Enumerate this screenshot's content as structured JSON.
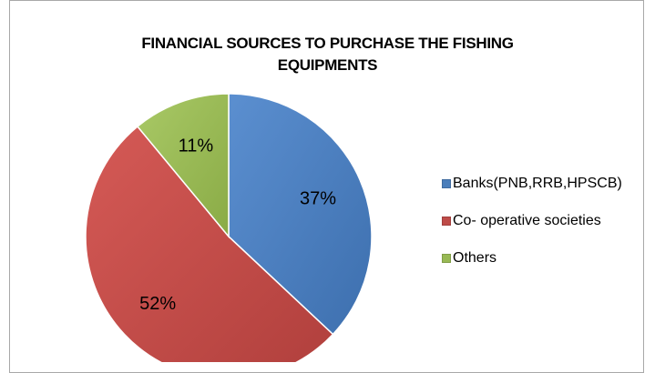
{
  "chart_data": {
    "type": "pie",
    "title": "FINANCIAL SOURCES TO PURCHASE THE FISHING EQUIPMENTS",
    "title_lines": [
      "FINANCIAL SOURCES TO PURCHASE THE FISHING",
      "EQUIPMENTS"
    ],
    "categories": [
      "Banks(PNB,RRB,HPSCB)",
      "Co- operative societies",
      "Others"
    ],
    "values": [
      37,
      52,
      11
    ],
    "labels": [
      "37%",
      "52%",
      "11%"
    ],
    "colors": [
      "#4a7ebb",
      "#be4b48",
      "#98b954"
    ],
    "legend_position": "right"
  }
}
